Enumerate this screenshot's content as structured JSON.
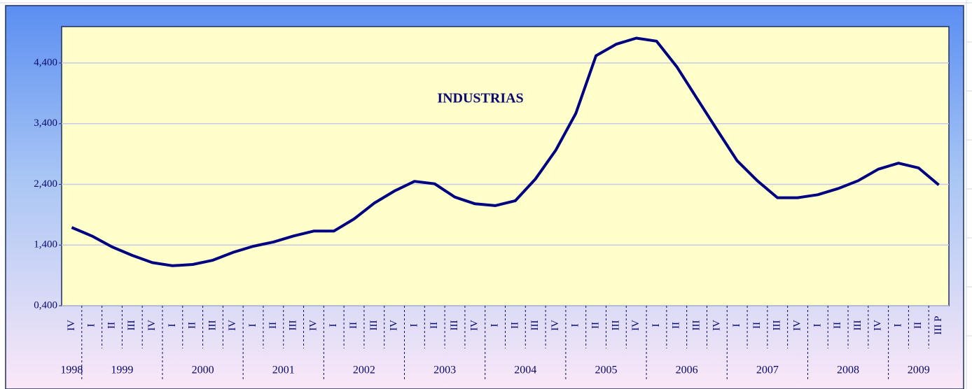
{
  "chart_data": {
    "type": "line",
    "title": "INDUSTRIAS",
    "categories": [
      "IV",
      "I",
      "II",
      "III",
      "IV",
      "I",
      "II",
      "III",
      "IV",
      "I",
      "II",
      "III",
      "IV",
      "I",
      "II",
      "III",
      "IV",
      "I",
      "II",
      "III",
      "IV",
      "I",
      "II",
      "III",
      "IV",
      "I",
      "II",
      "III",
      "IV",
      "I",
      "II",
      "III",
      "IV",
      "I",
      "II",
      "III",
      "IV",
      "I",
      "II",
      "III",
      "IV",
      "I",
      "II",
      "III P"
    ],
    "years": [
      "1998",
      "1999",
      "2000",
      "2001",
      "2002",
      "2003",
      "2004",
      "2005",
      "2006",
      "2007",
      "2008",
      "2009"
    ],
    "series": [
      {
        "name": "INDUSTRIAS",
        "color": "#000080",
        "values": [
          1.69,
          1.55,
          1.37,
          1.23,
          1.11,
          1.06,
          1.08,
          1.15,
          1.28,
          1.38,
          1.45,
          1.55,
          1.63,
          1.63,
          1.83,
          2.09,
          2.29,
          2.45,
          2.41,
          2.19,
          2.08,
          2.05,
          2.13,
          2.49,
          2.96,
          3.57,
          4.52,
          4.71,
          4.81,
          4.76,
          4.34,
          3.82,
          3.3,
          2.79,
          2.46,
          2.18,
          2.18,
          2.23,
          2.33,
          2.46,
          2.65,
          2.75,
          2.67,
          2.39
        ]
      }
    ],
    "ylim": [
      0.4,
      5.0
    ],
    "yticks": [
      {
        "value": 0.4,
        "label": "0,400"
      },
      {
        "value": 1.4,
        "label": "1,400"
      },
      {
        "value": 2.4,
        "label": "2,400"
      },
      {
        "value": 3.4,
        "label": "3,400"
      },
      {
        "value": 4.4,
        "label": "4,400"
      }
    ],
    "grid": true
  }
}
